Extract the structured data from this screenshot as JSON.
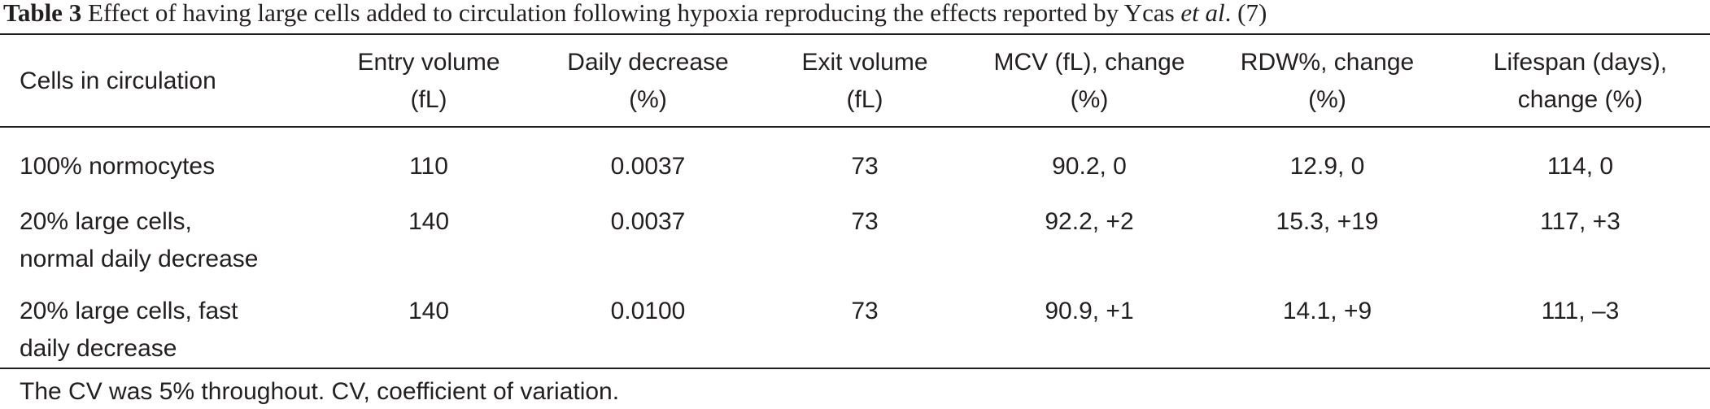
{
  "caption": {
    "label": "Table 3",
    "text": "Effect of having large cells added to circulation following hypoxia reproducing the effects reported by Ycas",
    "etal": "et al",
    "ref": ". (7)"
  },
  "table": {
    "headers": [
      [
        "Cells in circulation"
      ],
      [
        "Entry volume",
        "(fL)"
      ],
      [
        "Daily decrease",
        "(%)"
      ],
      [
        "Exit volume",
        "(fL)"
      ],
      [
        "MCV (fL), change",
        "(%)"
      ],
      [
        "RDW%, change",
        "(%)"
      ],
      [
        "Lifespan (days),",
        "change (%)"
      ]
    ],
    "rows": [
      {
        "cells": [
          "100% normocytes"
        ],
        "entry": "110",
        "daily": "0.0037",
        "exit": "73",
        "mcv": "90.2, 0",
        "rdw": "12.9, 0",
        "lifespan": "114, 0"
      },
      {
        "cells": [
          "20% large cells,",
          "normal daily decrease"
        ],
        "entry": "140",
        "daily": "0.0037",
        "exit": "73",
        "mcv": "92.2, +2",
        "rdw": "15.3, +19",
        "lifespan": "117, +3"
      },
      {
        "cells": [
          "20% large cells, fast",
          "daily decrease"
        ],
        "entry": "140",
        "daily": "0.0100",
        "exit": "73",
        "mcv": "90.9, +1",
        "rdw": "14.1, +9",
        "lifespan": "111, –3"
      }
    ]
  },
  "footnote": "The CV was 5% throughout. CV, coefficient of variation."
}
